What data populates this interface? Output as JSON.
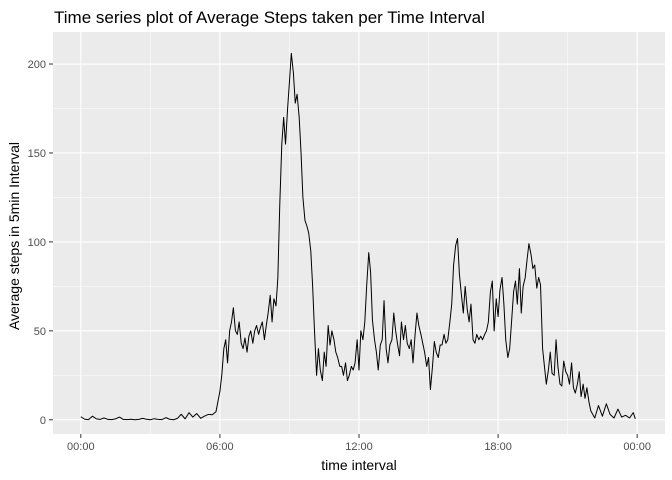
{
  "chart_data": {
    "type": "line",
    "title": "Time series plot of Average Steps taken per Time Interval",
    "xlabel": "time interval",
    "ylabel": "Average steps in 5min Interval",
    "x_unit": "hours",
    "xlim": [
      -1.2,
      25.2
    ],
    "ylim": [
      -8,
      218
    ],
    "x_ticks": [
      {
        "value": 0,
        "label": "00:00"
      },
      {
        "value": 6,
        "label": "06:00"
      },
      {
        "value": 12,
        "label": "12:00"
      },
      {
        "value": 18,
        "label": "18:00"
      },
      {
        "value": 24,
        "label": "00:00"
      }
    ],
    "y_ticks": [
      {
        "value": 0,
        "label": "0"
      },
      {
        "value": 50,
        "label": "50"
      },
      {
        "value": 100,
        "label": "100"
      },
      {
        "value": 150,
        "label": "150"
      },
      {
        "value": 200,
        "label": "200"
      }
    ],
    "grid": true,
    "background": "#ebebeb",
    "grid_color": "#ffffff",
    "line_color": "#000000",
    "series": [
      {
        "x": [
          0,
          0.17,
          0.33,
          0.5,
          0.67,
          0.83,
          1.0,
          1.17,
          1.33,
          1.5,
          1.67,
          1.83,
          2.0,
          2.17,
          2.33,
          2.5,
          2.67,
          2.83,
          3.0,
          3.17,
          3.33,
          3.5,
          3.67,
          3.83,
          4.0,
          4.17,
          4.33,
          4.5,
          4.67,
          4.83,
          5.0,
          5.17,
          5.33,
          5.5,
          5.67,
          5.83,
          6.0,
          6.08,
          6.17,
          6.25,
          6.33,
          6.42,
          6.5,
          6.58,
          6.67,
          6.75,
          6.83,
          6.92,
          7.0,
          7.08,
          7.17,
          7.25,
          7.33,
          7.42,
          7.5,
          7.58,
          7.67,
          7.75,
          7.83,
          7.92,
          8.0,
          8.08,
          8.17,
          8.25,
          8.33,
          8.42,
          8.5,
          8.58,
          8.67,
          8.75,
          8.83,
          8.92,
          9.0,
          9.08,
          9.17,
          9.25,
          9.33,
          9.42,
          9.5,
          9.58,
          9.67,
          9.75,
          9.83,
          9.92,
          10.0,
          10.08,
          10.17,
          10.25,
          10.33,
          10.42,
          10.5,
          10.58,
          10.67,
          10.75,
          10.83,
          10.92,
          11.0,
          11.08,
          11.17,
          11.25,
          11.33,
          11.42,
          11.5,
          11.58,
          11.67,
          11.75,
          11.83,
          11.92,
          12.0,
          12.08,
          12.17,
          12.25,
          12.33,
          12.42,
          12.5,
          12.58,
          12.67,
          12.75,
          12.83,
          12.92,
          13.0,
          13.08,
          13.17,
          13.25,
          13.33,
          13.42,
          13.5,
          13.58,
          13.67,
          13.75,
          13.83,
          13.92,
          14.0,
          14.08,
          14.17,
          14.25,
          14.33,
          14.42,
          14.5,
          14.58,
          14.67,
          14.75,
          14.83,
          14.92,
          15.0,
          15.08,
          15.17,
          15.25,
          15.33,
          15.42,
          15.5,
          15.58,
          15.67,
          15.75,
          15.83,
          15.92,
          16.0,
          16.08,
          16.17,
          16.25,
          16.33,
          16.42,
          16.5,
          16.58,
          16.67,
          16.75,
          16.83,
          16.92,
          17.0,
          17.08,
          17.17,
          17.25,
          17.33,
          17.42,
          17.5,
          17.58,
          17.67,
          17.75,
          17.83,
          17.92,
          18.0,
          18.08,
          18.17,
          18.25,
          18.33,
          18.42,
          18.5,
          18.58,
          18.67,
          18.75,
          18.83,
          18.92,
          19.0,
          19.08,
          19.17,
          19.25,
          19.33,
          19.42,
          19.5,
          19.58,
          19.67,
          19.75,
          19.83,
          19.92,
          20.0,
          20.08,
          20.17,
          20.25,
          20.33,
          20.42,
          20.5,
          20.58,
          20.67,
          20.75,
          20.83,
          20.92,
          21.0,
          21.08,
          21.17,
          21.25,
          21.33,
          21.42,
          21.5,
          21.58,
          21.67,
          21.75,
          21.83,
          21.92,
          22.0,
          22.17,
          22.33,
          22.5,
          22.67,
          22.83,
          23.0,
          23.17,
          23.33,
          23.5,
          23.67,
          23.83,
          23.92
        ],
        "y": [
          1.7,
          0.3,
          0.1,
          2.0,
          0.5,
          0.2,
          1.0,
          0.2,
          0.1,
          0.5,
          1.5,
          0.2,
          0.1,
          0.3,
          0.0,
          0.2,
          0.8,
          0.3,
          0.0,
          0.6,
          0.2,
          0.1,
          1.2,
          0.3,
          0.0,
          0.8,
          3.1,
          0.5,
          4.0,
          1.5,
          3.5,
          0.8,
          2.0,
          3.0,
          2.8,
          4.5,
          16.0,
          25.0,
          40.0,
          45.0,
          32.0,
          50.0,
          55.0,
          63.0,
          50.0,
          48.0,
          55.0,
          43.0,
          40.0,
          46.0,
          38.0,
          47.0,
          50.0,
          43.0,
          50.0,
          53.0,
          48.0,
          52.0,
          55.0,
          45.0,
          53.0,
          60.0,
          70.0,
          55.0,
          68.0,
          64.0,
          80.0,
          120.0,
          155.0,
          170.0,
          155.0,
          175.0,
          190.0,
          206.0,
          195.0,
          178.0,
          183.0,
          170.0,
          150.0,
          125.0,
          112.0,
          109.0,
          105.0,
          95.0,
          75.0,
          50.0,
          25.0,
          40.0,
          28.0,
          22.0,
          38.0,
          30.0,
          53.0,
          42.0,
          50.0,
          45.0,
          38.0,
          35.0,
          30.0,
          30.0,
          25.0,
          32.0,
          22.0,
          25.0,
          30.0,
          28.0,
          32.0,
          45.0,
          28.0,
          50.0,
          45.0,
          55.0,
          75.0,
          94.0,
          83.0,
          56.0,
          45.0,
          38.0,
          28.0,
          42.0,
          45.0,
          67.0,
          40.0,
          32.0,
          42.0,
          45.0,
          60.0,
          50.0,
          42.0,
          36.0,
          55.0,
          45.0,
          53.0,
          43.0,
          40.0,
          45.0,
          32.0,
          48.0,
          60.0,
          53.0,
          48.0,
          43.0,
          38.0,
          30.0,
          35.0,
          17.0,
          30.0,
          44.0,
          38.0,
          35.0,
          42.0,
          42.0,
          48.0,
          43.0,
          45.0,
          55.0,
          65.0,
          87.0,
          98.0,
          102.0,
          82.0,
          70.0,
          60.0,
          75.0,
          62.0,
          55.0,
          65.0,
          45.0,
          43.0,
          48.0,
          45.0,
          47.0,
          45.0,
          48.0,
          50.0,
          55.0,
          72.0,
          78.0,
          50.0,
          68.0,
          58.0,
          73.0,
          80.0,
          65.0,
          45.0,
          35.0,
          40.0,
          55.0,
          72.0,
          78.0,
          65.0,
          85.0,
          60.0,
          75.0,
          80.0,
          90.0,
          99.0,
          93.0,
          85.0,
          87.0,
          74.0,
          80.0,
          76.0,
          40.0,
          30.0,
          20.0,
          28.0,
          38.0,
          26.0,
          25.0,
          45.0,
          30.0,
          20.0,
          19.0,
          33.0,
          27.0,
          25.0,
          20.0,
          32.0,
          18.0,
          15.0,
          20.0,
          27.0,
          13.0,
          20.0,
          12.0,
          18.0,
          10.0,
          5.0,
          1.0,
          8.0,
          2.0,
          9.0,
          3.0,
          1.0,
          6.0,
          1.5,
          2.5,
          1.0,
          4.0,
          0.5
        ]
      }
    ]
  }
}
